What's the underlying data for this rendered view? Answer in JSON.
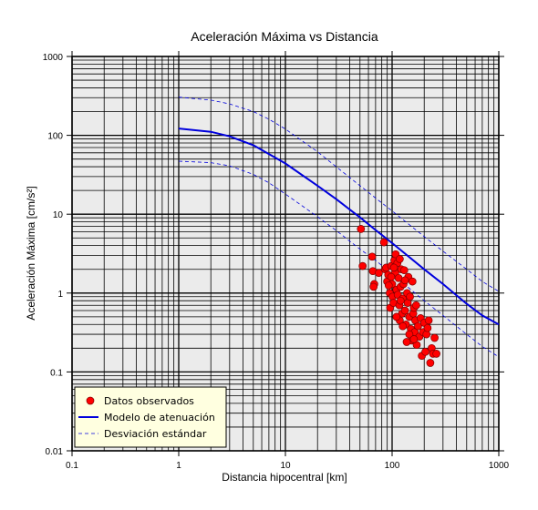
{
  "chart_data": {
    "type": "scatter",
    "title": "Aceleración Máxima vs Distancia",
    "xlabel": "Distancia hipocentral [km]",
    "ylabel": "Aceleración Máxima [cm/s²]",
    "xscale": "log",
    "yscale": "log",
    "xlim": [
      0.1,
      1000
    ],
    "ylim": [
      0.01,
      1000
    ],
    "xticks": [
      {
        "value": 0.1,
        "label": "0.1"
      },
      {
        "value": 1,
        "label": "1"
      },
      {
        "value": 10,
        "label": "10"
      },
      {
        "value": 100,
        "label": "100"
      },
      {
        "value": 1000,
        "label": "1000"
      }
    ],
    "yticks": [
      {
        "value": 0.01,
        "label": "0.01"
      },
      {
        "value": 0.1,
        "label": "0.1"
      },
      {
        "value": 1,
        "label": "1"
      },
      {
        "value": 10,
        "label": "10"
      },
      {
        "value": 100,
        "label": "100"
      },
      {
        "value": 1000,
        "label": "1000"
      }
    ],
    "grid": true,
    "legend_position": "bottom-left",
    "series": [
      {
        "name": "Datos observados",
        "kind": "points",
        "color": "#ff0000",
        "points": [
          [
            51,
            6.5
          ],
          [
            53,
            2.2
          ],
          [
            65,
            2.9
          ],
          [
            66,
            1.9
          ],
          [
            68,
            1.3
          ],
          [
            67,
            1.2
          ],
          [
            75,
            1.8
          ],
          [
            84,
            4.4
          ],
          [
            86,
            2.0
          ],
          [
            88,
            2.1
          ],
          [
            90,
            1.4
          ],
          [
            92,
            1.7
          ],
          [
            95,
            1.0
          ],
          [
            96,
            0.65
          ],
          [
            98,
            2.2
          ],
          [
            100,
            1.3
          ],
          [
            101,
            0.9
          ],
          [
            103,
            0.75
          ],
          [
            105,
            2.6
          ],
          [
            107,
            1.8
          ],
          [
            108,
            3.1
          ],
          [
            110,
            1.1
          ],
          [
            112,
            2.4
          ],
          [
            113,
            0.95
          ],
          [
            115,
            1.55
          ],
          [
            117,
            0.7
          ],
          [
            118,
            2.7
          ],
          [
            120,
            1.2
          ],
          [
            122,
            2.0
          ],
          [
            124,
            0.55
          ],
          [
            126,
            0.85
          ],
          [
            128,
            1.3
          ],
          [
            130,
            1.95
          ],
          [
            132,
            0.6
          ],
          [
            135,
            0.4
          ],
          [
            138,
            1.0
          ],
          [
            140,
            0.75
          ],
          [
            142,
            1.6
          ],
          [
            145,
            0.5
          ],
          [
            147,
            0.9
          ],
          [
            150,
            0.35
          ],
          [
            152,
            0.25
          ],
          [
            155,
            1.4
          ],
          [
            158,
            0.55
          ],
          [
            160,
            0.65
          ],
          [
            163,
            0.32
          ],
          [
            165,
            0.45
          ],
          [
            168,
            0.7
          ],
          [
            170,
            0.22
          ],
          [
            175,
            0.38
          ],
          [
            180,
            0.28
          ],
          [
            185,
            0.48
          ],
          [
            190,
            0.16
          ],
          [
            195,
            0.32
          ],
          [
            200,
            0.42
          ],
          [
            205,
            0.18
          ],
          [
            210,
            0.3
          ],
          [
            215,
            0.36
          ],
          [
            220,
            0.45
          ],
          [
            228,
            0.13
          ],
          [
            235,
            0.2
          ],
          [
            242,
            0.17
          ],
          [
            250,
            0.27
          ],
          [
            260,
            0.17
          ],
          [
            145,
            0.3
          ],
          [
            137,
            0.24
          ],
          [
            118,
            0.45
          ],
          [
            126,
            0.38
          ],
          [
            160,
            0.26
          ],
          [
            110,
            0.5
          ],
          [
            98,
            1.6
          ],
          [
            104,
            2.1
          ],
          [
            132,
            1.45
          ],
          [
            120,
            0.8
          ],
          [
            93,
            1.25
          ]
        ]
      },
      {
        "name": "Modelo de atenuación",
        "kind": "line",
        "color": "#0000dd",
        "points": [
          [
            1,
            122
          ],
          [
            2,
            111
          ],
          [
            3,
            97
          ],
          [
            5,
            75
          ],
          [
            7,
            58
          ],
          [
            10,
            44
          ],
          [
            20,
            23
          ],
          [
            30,
            15.5
          ],
          [
            50,
            9.1
          ],
          [
            70,
            6.3
          ],
          [
            100,
            4.3
          ],
          [
            200,
            2.0
          ],
          [
            300,
            1.3
          ],
          [
            500,
            0.73
          ],
          [
            700,
            0.52
          ],
          [
            1000,
            0.4
          ]
        ]
      },
      {
        "name": "Desviación estándar",
        "kind": "dashed-line",
        "color": "#0000dd",
        "points": [
          [
            1,
            305
          ],
          [
            2,
            280
          ],
          [
            3,
            250
          ],
          [
            5,
            200
          ],
          [
            7,
            160
          ],
          [
            10,
            120
          ],
          [
            20,
            62
          ],
          [
            30,
            40
          ],
          [
            50,
            23
          ],
          [
            70,
            16
          ],
          [
            100,
            11
          ],
          [
            200,
            5.2
          ],
          [
            300,
            3.4
          ],
          [
            500,
            2.0
          ],
          [
            700,
            1.4
          ],
          [
            1000,
            1.05
          ]
        ]
      },
      {
        "kind": "dashed-line",
        "color": "#0000dd",
        "points": [
          [
            1,
            47
          ],
          [
            2,
            45
          ],
          [
            3,
            41
          ],
          [
            5,
            32
          ],
          [
            7,
            25
          ],
          [
            10,
            18
          ],
          [
            20,
            9.3
          ],
          [
            30,
            6.2
          ],
          [
            50,
            3.6
          ],
          [
            70,
            2.6
          ],
          [
            100,
            1.75
          ],
          [
            200,
            0.8
          ],
          [
            300,
            0.52
          ],
          [
            500,
            0.3
          ],
          [
            700,
            0.21
          ],
          [
            1000,
            0.155
          ]
        ]
      }
    ]
  }
}
